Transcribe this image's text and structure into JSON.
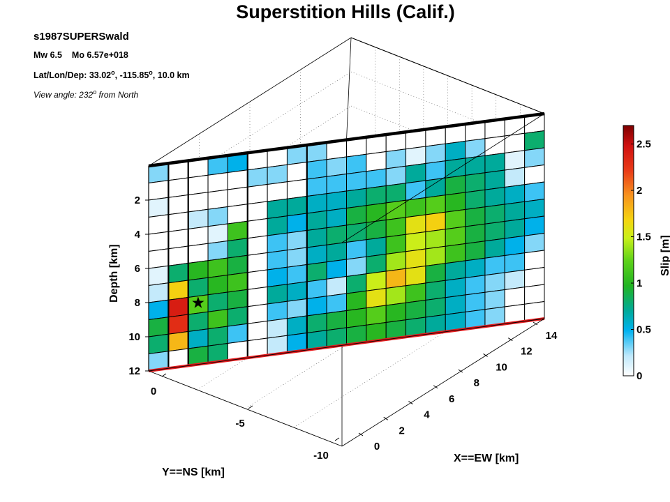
{
  "title": "Superstition Hills (Calif.)",
  "event": {
    "id": "s1987SUPERSwald",
    "mw_label": "Mw 6.5",
    "mo_label": "Mo 6.57e+018",
    "location_prefix": "Lat/Lon/Dep: 33.02",
    "location_lon": ", -115.85",
    "location_suffix": ", 10.0 km",
    "degree_mark": "o",
    "view_prefix": "View angle: 232",
    "view_suffix": " from North"
  },
  "colors": {
    "top_edge": "#000000",
    "bottom_edge": "#e31a1c",
    "hypocenter": "#000000"
  },
  "chart_data": {
    "type": "heatmap",
    "title": "Superstition Hills (Calif.)",
    "xlabel": "X==EW [km]",
    "ylabel": "Y==NS [km]",
    "zlabel": "Depth [km]",
    "colorbar_label": "Slip [m]",
    "x_range": [
      0,
      14
    ],
    "y_range": [
      -10,
      0
    ],
    "depth_range": [
      0,
      12
    ],
    "x_ticks": [
      "0",
      "2",
      "4",
      "6",
      "8",
      "10",
      "12",
      "14"
    ],
    "y_ticks": [
      "0",
      "-5",
      "-10"
    ],
    "depth_ticks": [
      "2",
      "4",
      "6",
      "8",
      "10",
      "12"
    ],
    "colorbar_ticks": [
      "0",
      "0.5",
      "1",
      "1.5",
      "2",
      "2.5"
    ],
    "color_range": [
      0,
      2.7
    ],
    "grid": true,
    "colorbar_position": "right",
    "subfaults_along_strike": 20,
    "subfaults_down_dip": 12,
    "hypocenter_cell": [
      2,
      8
    ],
    "slip": [
      [
        0.3,
        0.0,
        0.0,
        0.4,
        0.5,
        0.0,
        0.0,
        0.3,
        0.3,
        0.0,
        0.0,
        0.0,
        0.0,
        0.0,
        0.0,
        0.0,
        0.0,
        0.0,
        0.0,
        0.0
      ],
      [
        0.0,
        0.0,
        0.0,
        0.0,
        0.0,
        0.3,
        0.3,
        0.0,
        0.4,
        0.3,
        0.4,
        0.0,
        0.3,
        0.1,
        0.3,
        0.6,
        0.3,
        0.0,
        0.0,
        0.8
      ],
      [
        0.1,
        0.0,
        0.0,
        0.0,
        0.0,
        0.0,
        0.0,
        0.0,
        0.4,
        0.4,
        0.4,
        0.4,
        0.3,
        0.7,
        0.4,
        0.7,
        0.7,
        0.7,
        0.1,
        0.3
      ],
      [
        0.0,
        0.0,
        0.2,
        0.3,
        0.0,
        0.0,
        0.7,
        0.7,
        0.6,
        0.6,
        0.7,
        0.8,
        0.8,
        0.4,
        0.7,
        0.9,
        0.8,
        0.7,
        0.2,
        0.0
      ],
      [
        0.0,
        0.0,
        0.0,
        0.1,
        1.1,
        0.0,
        0.7,
        0.5,
        0.7,
        0.6,
        0.9,
        1.0,
        1.2,
        1.1,
        1.2,
        1.0,
        0.8,
        0.7,
        0.6,
        0.4
      ],
      [
        0.0,
        0.0,
        0.0,
        0.3,
        0.8,
        0.0,
        0.4,
        0.3,
        0.7,
        0.8,
        0.8,
        0.9,
        1.1,
        1.6,
        1.7,
        1.2,
        0.9,
        0.8,
        0.7,
        0.6
      ],
      [
        0.1,
        0.8,
        1.0,
        1.1,
        0.9,
        0.0,
        0.4,
        0.3,
        0.6,
        0.7,
        0.4,
        0.7,
        1.1,
        1.5,
        1.4,
        1.2,
        0.9,
        0.8,
        0.7,
        0.5
      ],
      [
        0.2,
        1.7,
        0.8,
        1.0,
        1.1,
        0.0,
        0.5,
        0.4,
        0.8,
        0.5,
        0.3,
        0.8,
        1.4,
        1.6,
        1.4,
        1.1,
        0.9,
        0.7,
        0.5,
        0.3
      ],
      [
        0.5,
        2.4,
        1.2,
        0.8,
        0.9,
        0.0,
        0.7,
        0.6,
        0.4,
        0.2,
        0.8,
        1.5,
        1.8,
        1.6,
        0.9,
        0.7,
        0.6,
        0.4,
        0.4,
        0.0
      ],
      [
        0.9,
        2.3,
        0.8,
        1.1,
        0.8,
        0.0,
        0.4,
        0.3,
        0.5,
        0.4,
        1.0,
        1.6,
        1.4,
        1.1,
        0.8,
        0.6,
        0.4,
        0.3,
        0.2,
        0.0
      ],
      [
        0.8,
        1.8,
        0.6,
        0.8,
        0.4,
        0.0,
        0.2,
        0.6,
        0.8,
        0.9,
        1.0,
        1.2,
        1.0,
        0.9,
        0.8,
        0.6,
        0.4,
        0.3,
        0.0,
        0.0
      ],
      [
        0.3,
        0.0,
        0.9,
        0.8,
        0.0,
        0.0,
        0.2,
        0.5,
        0.7,
        0.8,
        0.9,
        1.0,
        0.9,
        0.8,
        0.7,
        0.6,
        0.4,
        0.3,
        0.0,
        0.0
      ]
    ]
  }
}
